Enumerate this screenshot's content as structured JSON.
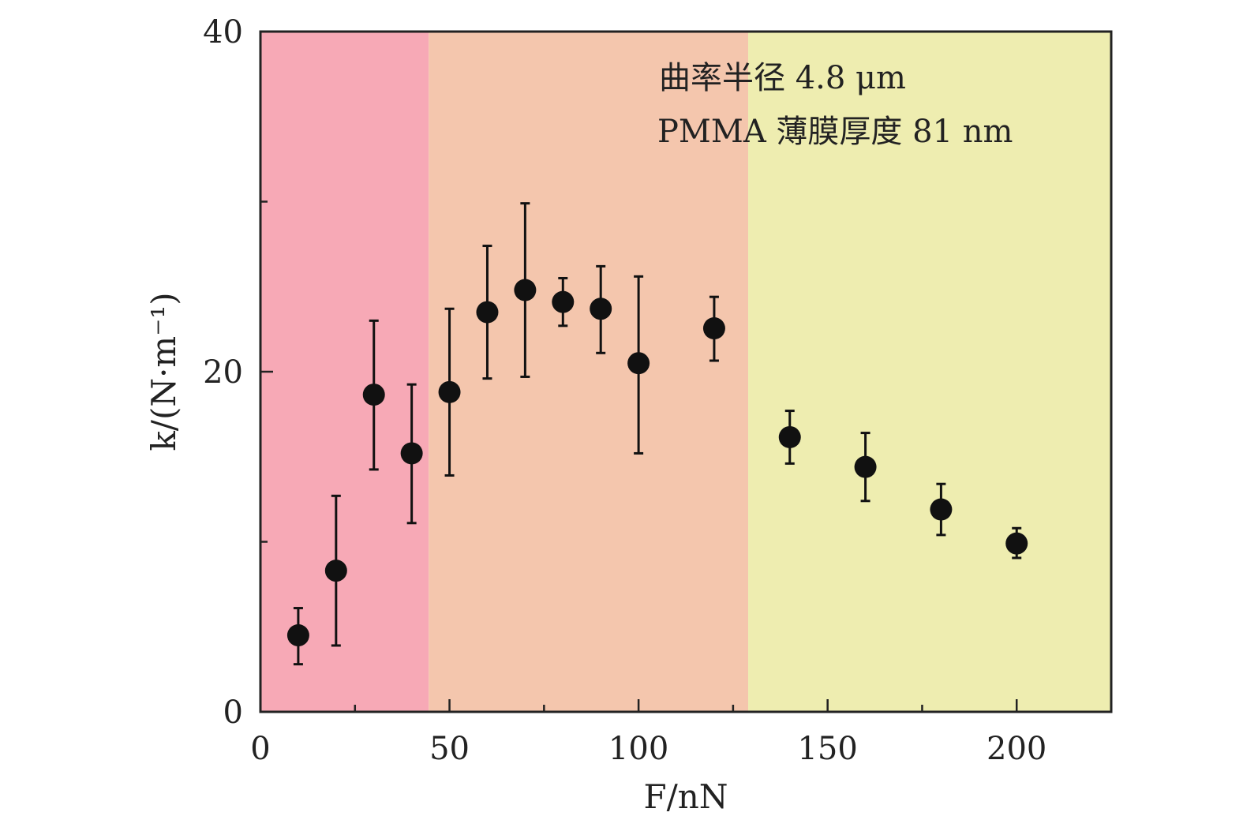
{
  "chart_data": {
    "type": "scatter",
    "title": "",
    "xlabel": "F/nN",
    "ylabel": "k/(N·m⁻¹)",
    "xlim": [
      0,
      225
    ],
    "ylim": [
      0,
      40
    ],
    "xticks": [
      0,
      50,
      100,
      150,
      200
    ],
    "xtick_labels": [
      "0",
      "50",
      "100",
      "150",
      "200"
    ],
    "yticks": [
      0,
      20,
      40
    ],
    "ytick_labels": [
      "0",
      "20",
      "40"
    ],
    "x_minor_ticks": [
      25,
      75,
      125,
      175
    ],
    "y_minor_ticks": [
      10,
      30
    ],
    "grid": false,
    "annotations": [
      "曲率半径 4.8 μm",
      "PMMA 薄膜厚度 81 nm"
    ],
    "regions": [
      {
        "x0": 0,
        "x1": 44.5,
        "color": "#f7a9b6"
      },
      {
        "x0": 44.5,
        "x1": 129,
        "color": "#f4c6ad"
      },
      {
        "x0": 129,
        "x1": 225,
        "color": "#eeedb0"
      }
    ],
    "series": [
      {
        "name": "k",
        "color": "#111111",
        "x": [
          10,
          20,
          30,
          40,
          50,
          60,
          70,
          80,
          90,
          100,
          120,
          140,
          160,
          180,
          200
        ],
        "y": [
          4.5,
          8.3,
          18.65,
          15.2,
          18.8,
          23.5,
          24.8,
          24.1,
          23.7,
          20.5,
          22.55,
          16.15,
          14.4,
          11.9,
          9.9
        ],
        "err_low": [
          2.8,
          3.9,
          14.25,
          11.1,
          13.9,
          19.6,
          19.7,
          22.7,
          21.1,
          15.2,
          20.65,
          14.6,
          12.4,
          10.4,
          9.05
        ],
        "err_high": [
          6.1,
          12.7,
          23.0,
          19.25,
          23.7,
          27.4,
          29.9,
          25.5,
          26.2,
          25.6,
          24.4,
          17.7,
          16.4,
          13.4,
          10.8
        ]
      }
    ]
  }
}
